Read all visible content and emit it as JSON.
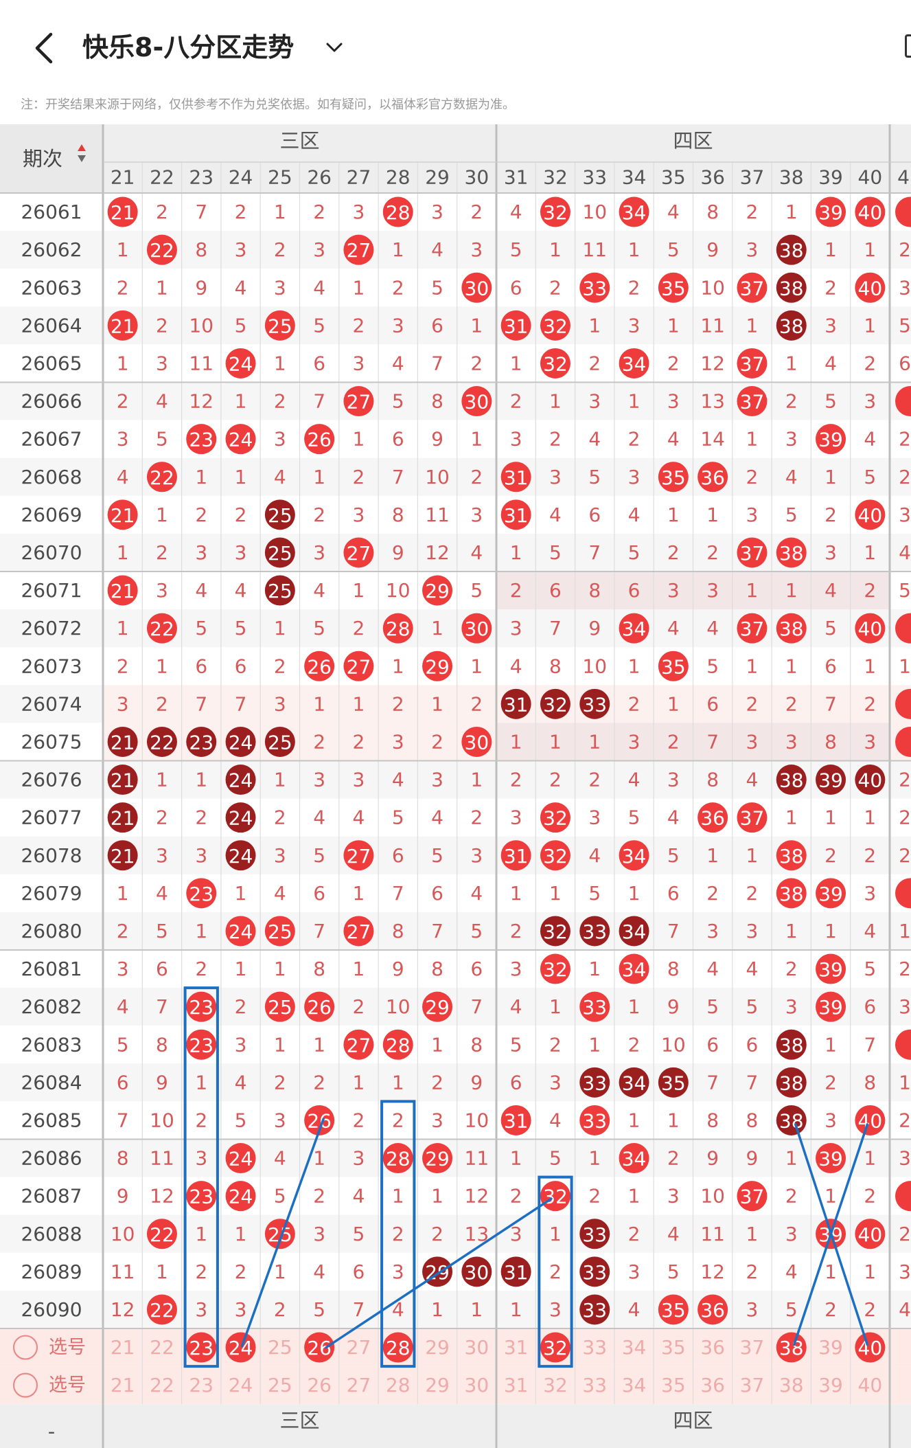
{
  "header": {
    "title": "快乐8-八分区走势",
    "back_icon": "chevron-left-icon",
    "dropdown_icon": "chevron-down-icon"
  },
  "note": "注：开奖结果来源于网络，仅供参考不作为兑奖依据。如有疑问，以福体彩官方数据为准。",
  "table": {
    "issue_header": "期次",
    "sort_icon": "sort-icon",
    "zones": [
      {
        "name": "三区",
        "numbers": [
          21,
          22,
          23,
          24,
          25,
          26,
          27,
          28,
          29,
          30
        ]
      },
      {
        "name": "四区",
        "numbers": [
          31,
          32,
          33,
          34,
          35,
          36,
          37,
          38,
          39,
          40
        ]
      }
    ],
    "next_zone_col_label": "4",
    "rows": [
      {
        "issue": "26061",
        "cells": [
          "h",
          "2",
          "7",
          "2",
          "1",
          "2",
          "3",
          "h",
          "3",
          "2",
          "4",
          "h",
          "10",
          "h",
          "4",
          "8",
          "2",
          "1",
          "h",
          "h"
        ],
        "dark": [],
        "next": "h"
      },
      {
        "issue": "26062",
        "cells": [
          "1",
          "h",
          "8",
          "3",
          "2",
          "3",
          "h",
          "1",
          "4",
          "3",
          "5",
          "1",
          "11",
          "1",
          "5",
          "9",
          "3",
          "h",
          "1",
          "1"
        ],
        "dark": [
          38
        ],
        "next": "2"
      },
      {
        "issue": "26063",
        "cells": [
          "2",
          "1",
          "9",
          "4",
          "3",
          "4",
          "1",
          "2",
          "5",
          "h",
          "6",
          "2",
          "h",
          "2",
          "h",
          "10",
          "h",
          "h",
          "2",
          "h"
        ],
        "dark": [
          38
        ],
        "next": "3"
      },
      {
        "issue": "26064",
        "cells": [
          "h",
          "2",
          "10",
          "5",
          "h",
          "5",
          "2",
          "3",
          "6",
          "1",
          "h",
          "h",
          "1",
          "3",
          "1",
          "11",
          "1",
          "h",
          "3",
          "1"
        ],
        "dark": [
          38
        ],
        "next": "5"
      },
      {
        "issue": "26065",
        "cells": [
          "1",
          "3",
          "11",
          "h",
          "1",
          "6",
          "3",
          "4",
          "7",
          "2",
          "1",
          "h",
          "2",
          "h",
          "2",
          "12",
          "h",
          "1",
          "4",
          "2"
        ],
        "dark": [],
        "next": "6"
      },
      {
        "issue": "26066",
        "cells": [
          "2",
          "4",
          "12",
          "1",
          "2",
          "7",
          "h",
          "5",
          "8",
          "h",
          "2",
          "1",
          "3",
          "1",
          "3",
          "13",
          "h",
          "2",
          "5",
          "3"
        ],
        "dark": [],
        "next": "h"
      },
      {
        "issue": "26067",
        "cells": [
          "3",
          "5",
          "h",
          "h",
          "3",
          "h",
          "1",
          "6",
          "9",
          "1",
          "3",
          "2",
          "4",
          "2",
          "4",
          "14",
          "1",
          "3",
          "h",
          "4"
        ],
        "dark": [],
        "next": "2"
      },
      {
        "issue": "26068",
        "cells": [
          "4",
          "h",
          "1",
          "1",
          "4",
          "1",
          "2",
          "7",
          "10",
          "2",
          "h",
          "3",
          "5",
          "3",
          "h",
          "h",
          "2",
          "4",
          "1",
          "5"
        ],
        "dark": [],
        "next": "2"
      },
      {
        "issue": "26069",
        "cells": [
          "h",
          "1",
          "2",
          "2",
          "h",
          "2",
          "3",
          "8",
          "11",
          "3",
          "h",
          "4",
          "6",
          "4",
          "1",
          "1",
          "3",
          "5",
          "2",
          "h"
        ],
        "dark": [
          25
        ],
        "next": "3"
      },
      {
        "issue": "26070",
        "cells": [
          "1",
          "2",
          "3",
          "3",
          "h",
          "3",
          "h",
          "9",
          "12",
          "4",
          "1",
          "5",
          "7",
          "5",
          "2",
          "2",
          "h",
          "h",
          "3",
          "1"
        ],
        "dark": [
          25
        ],
        "next": "4"
      },
      {
        "issue": "26071",
        "cells": [
          "h",
          "3",
          "4",
          "4",
          "h",
          "4",
          "1",
          "10",
          "h",
          "5",
          "2",
          "6",
          "8",
          "6",
          "3",
          "3",
          "1",
          "1",
          "4",
          "2"
        ],
        "dark": [
          25
        ],
        "next": "5"
      },
      {
        "issue": "26072",
        "cells": [
          "1",
          "h",
          "5",
          "5",
          "1",
          "5",
          "2",
          "h",
          "1",
          "h",
          "3",
          "7",
          "9",
          "h",
          "4",
          "4",
          "h",
          "h",
          "5",
          "h"
        ],
        "dark": [],
        "next": "h"
      },
      {
        "issue": "26073",
        "cells": [
          "2",
          "1",
          "6",
          "6",
          "2",
          "h",
          "h",
          "1",
          "h",
          "1",
          "4",
          "8",
          "10",
          "1",
          "h",
          "5",
          "1",
          "1",
          "6",
          "1"
        ],
        "dark": [],
        "next": "1"
      },
      {
        "issue": "26074",
        "cells": [
          "3",
          "2",
          "7",
          "7",
          "3",
          "1",
          "1",
          "2",
          "1",
          "2",
          "h",
          "h",
          "h",
          "2",
          "1",
          "6",
          "2",
          "2",
          "7",
          "2"
        ],
        "dark": [
          31,
          32,
          33
        ],
        "next": "h"
      },
      {
        "issue": "26075",
        "cells": [
          "h",
          "h",
          "h",
          "h",
          "h",
          "2",
          "2",
          "3",
          "2",
          "h",
          "1",
          "1",
          "1",
          "3",
          "2",
          "7",
          "3",
          "3",
          "8",
          "3"
        ],
        "dark": [
          21,
          22,
          23,
          24,
          25
        ],
        "next": "h"
      },
      {
        "issue": "26076",
        "cells": [
          "h",
          "1",
          "1",
          "h",
          "1",
          "3",
          "3",
          "4",
          "3",
          "1",
          "2",
          "2",
          "2",
          "4",
          "3",
          "8",
          "4",
          "h",
          "h",
          "h"
        ],
        "dark": [
          21,
          24,
          38,
          39,
          40
        ],
        "next": "2"
      },
      {
        "issue": "26077",
        "cells": [
          "h",
          "2",
          "2",
          "h",
          "2",
          "4",
          "4",
          "5",
          "4",
          "2",
          "3",
          "h",
          "3",
          "5",
          "4",
          "h",
          "h",
          "1",
          "1",
          "1"
        ],
        "dark": [
          21,
          24
        ],
        "next": "2"
      },
      {
        "issue": "26078",
        "cells": [
          "h",
          "3",
          "3",
          "h",
          "3",
          "5",
          "h",
          "6",
          "5",
          "3",
          "h",
          "h",
          "4",
          "h",
          "5",
          "1",
          "1",
          "h",
          "2",
          "2"
        ],
        "dark": [
          21,
          24
        ],
        "next": "2"
      },
      {
        "issue": "26079",
        "cells": [
          "1",
          "4",
          "h",
          "1",
          "4",
          "6",
          "1",
          "7",
          "6",
          "4",
          "1",
          "1",
          "5",
          "1",
          "6",
          "2",
          "2",
          "h",
          "h",
          "3"
        ],
        "dark": [],
        "next": "h"
      },
      {
        "issue": "26080",
        "cells": [
          "2",
          "5",
          "1",
          "h",
          "h",
          "7",
          "h",
          "8",
          "7",
          "5",
          "2",
          "h",
          "h",
          "h",
          "7",
          "3",
          "3",
          "1",
          "1",
          "4"
        ],
        "dark": [
          32,
          33,
          34
        ],
        "next": "1"
      },
      {
        "issue": "26081",
        "cells": [
          "3",
          "6",
          "2",
          "1",
          "1",
          "8",
          "1",
          "9",
          "8",
          "6",
          "3",
          "h",
          "1",
          "h",
          "8",
          "4",
          "4",
          "2",
          "h",
          "5"
        ],
        "dark": [],
        "next": "2"
      },
      {
        "issue": "26082",
        "cells": [
          "4",
          "7",
          "h",
          "2",
          "h",
          "h",
          "2",
          "10",
          "h",
          "7",
          "4",
          "1",
          "h",
          "1",
          "9",
          "5",
          "5",
          "3",
          "h",
          "6"
        ],
        "dark": [],
        "next": "3"
      },
      {
        "issue": "26083",
        "cells": [
          "5",
          "8",
          "h",
          "3",
          "1",
          "1",
          "h",
          "h",
          "1",
          "8",
          "5",
          "2",
          "1",
          "2",
          "10",
          "6",
          "6",
          "h",
          "1",
          "7"
        ],
        "dark": [
          38
        ],
        "next": "h"
      },
      {
        "issue": "26084",
        "cells": [
          "6",
          "9",
          "1",
          "4",
          "2",
          "2",
          "1",
          "1",
          "2",
          "9",
          "6",
          "3",
          "h",
          "h",
          "h",
          "7",
          "7",
          "h",
          "2",
          "8"
        ],
        "dark": [
          33,
          34,
          35,
          38
        ],
        "next": "1"
      },
      {
        "issue": "26085",
        "cells": [
          "7",
          "10",
          "2",
          "5",
          "3",
          "h",
          "2",
          "2",
          "3",
          "10",
          "h",
          "4",
          "h",
          "1",
          "1",
          "8",
          "8",
          "h",
          "3",
          "h"
        ],
        "dark": [
          38
        ],
        "next": "2"
      },
      {
        "issue": "26086",
        "cells": [
          "8",
          "11",
          "3",
          "h",
          "4",
          "1",
          "3",
          "h",
          "h",
          "11",
          "1",
          "5",
          "1",
          "h",
          "2",
          "9",
          "9",
          "1",
          "h",
          "1"
        ],
        "dark": [],
        "next": "3"
      },
      {
        "issue": "26087",
        "cells": [
          "9",
          "12",
          "h",
          "h",
          "5",
          "2",
          "4",
          "1",
          "1",
          "12",
          "2",
          "h",
          "2",
          "1",
          "3",
          "10",
          "h",
          "2",
          "1",
          "2"
        ],
        "dark": [],
        "next": "h"
      },
      {
        "issue": "26088",
        "cells": [
          "10",
          "h",
          "1",
          "1",
          "h",
          "3",
          "5",
          "2",
          "2",
          "13",
          "3",
          "1",
          "h",
          "2",
          "4",
          "11",
          "1",
          "3",
          "h",
          "h"
        ],
        "dark": [
          33
        ],
        "next": "2"
      },
      {
        "issue": "26089",
        "cells": [
          "11",
          "1",
          "2",
          "2",
          "1",
          "4",
          "6",
          "3",
          "h",
          "h",
          "h",
          "2",
          "h",
          "3",
          "5",
          "12",
          "2",
          "4",
          "1",
          "1"
        ],
        "dark": [
          29,
          30,
          31,
          33
        ],
        "next": "3"
      },
      {
        "issue": "26090",
        "cells": [
          "12",
          "h",
          "3",
          "3",
          "2",
          "5",
          "7",
          "4",
          "1",
          "1",
          "1",
          "3",
          "h",
          "4",
          "h",
          "h",
          "3",
          "5",
          "2",
          "2"
        ],
        "dark": [
          33
        ],
        "next": "4"
      }
    ],
    "pick_label": "选号",
    "pick_rows": [
      {
        "selected": [
          23,
          24,
          26,
          28,
          32,
          38,
          40
        ]
      },
      {
        "selected": []
      }
    ],
    "footer_zone_label": "-"
  }
}
